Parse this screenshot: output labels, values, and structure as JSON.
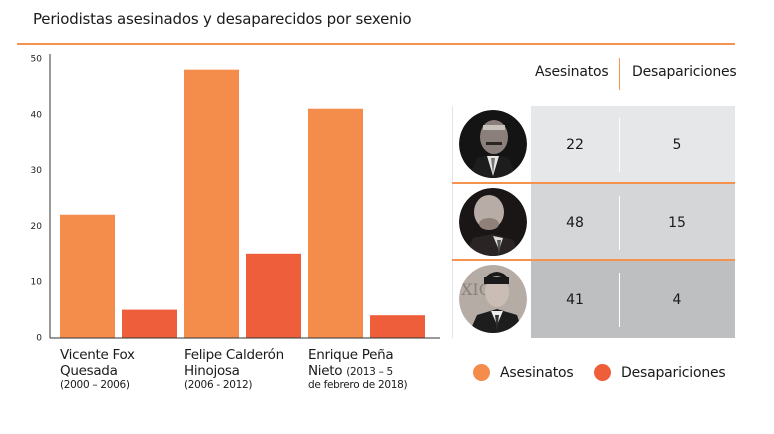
{
  "title": "Periodistas asesinados y desaparecidos por sexenio",
  "colors": {
    "asesinatos": "#f48c4b",
    "desapariciones": "#ee5e3b",
    "rule": "#f4924f",
    "row_bg": [
      "#e6e7e8",
      "#d5d6d7",
      "#bebfc1"
    ]
  },
  "chart_data": {
    "type": "bar",
    "title": "Periodistas asesinados y desaparecidos por sexenio",
    "xlabel": "",
    "ylabel": "",
    "ylim": [
      0,
      50
    ],
    "yticks": [
      0,
      10,
      20,
      30,
      40,
      50
    ],
    "grid": false,
    "legend": "bottom-right",
    "categories": [
      {
        "name": "Vicente Fox Quesada",
        "line1": "Vicente Fox",
        "line2": "Quesada",
        "period": "(2000 – 2006)"
      },
      {
        "name": "Felipe Calderón Hinojosa",
        "line1": "Felipe Calderón",
        "line2": "Hinojosa",
        "period": "(2006 - 2012)"
      },
      {
        "name": "Enrique Peña Nieto",
        "line1": "Enrique Peña",
        "line2": "Nieto",
        "period_inline": "(2013 – 5",
        "period": "de febrero de 2018)"
      }
    ],
    "series": [
      {
        "name": "Asesinatos",
        "color": "#f48c4b",
        "values": [
          22,
          48,
          41
        ]
      },
      {
        "name": "Desapariciones",
        "color": "#ee5e3b",
        "values": [
          5,
          15,
          4
        ]
      }
    ]
  },
  "table": {
    "headers": [
      "Asesinatos",
      "Desapariciones"
    ],
    "rows": [
      {
        "president": "Vicente Fox Quesada",
        "photo": "vicente-fox-photo",
        "asesinatos": "22",
        "desapariciones": "5"
      },
      {
        "president": "Felipe Calderón Hinojosa",
        "photo": "felipe-calderon-photo",
        "asesinatos": "48",
        "desapariciones": "15"
      },
      {
        "president": "Enrique Peña Nieto",
        "photo": "enrique-pena-nieto-photo",
        "asesinatos": "41",
        "desapariciones": "4"
      }
    ]
  },
  "legend": [
    {
      "label": "Asesinatos",
      "color": "#f48c4b"
    },
    {
      "label": "Desapariciones",
      "color": "#ee5e3b"
    }
  ]
}
